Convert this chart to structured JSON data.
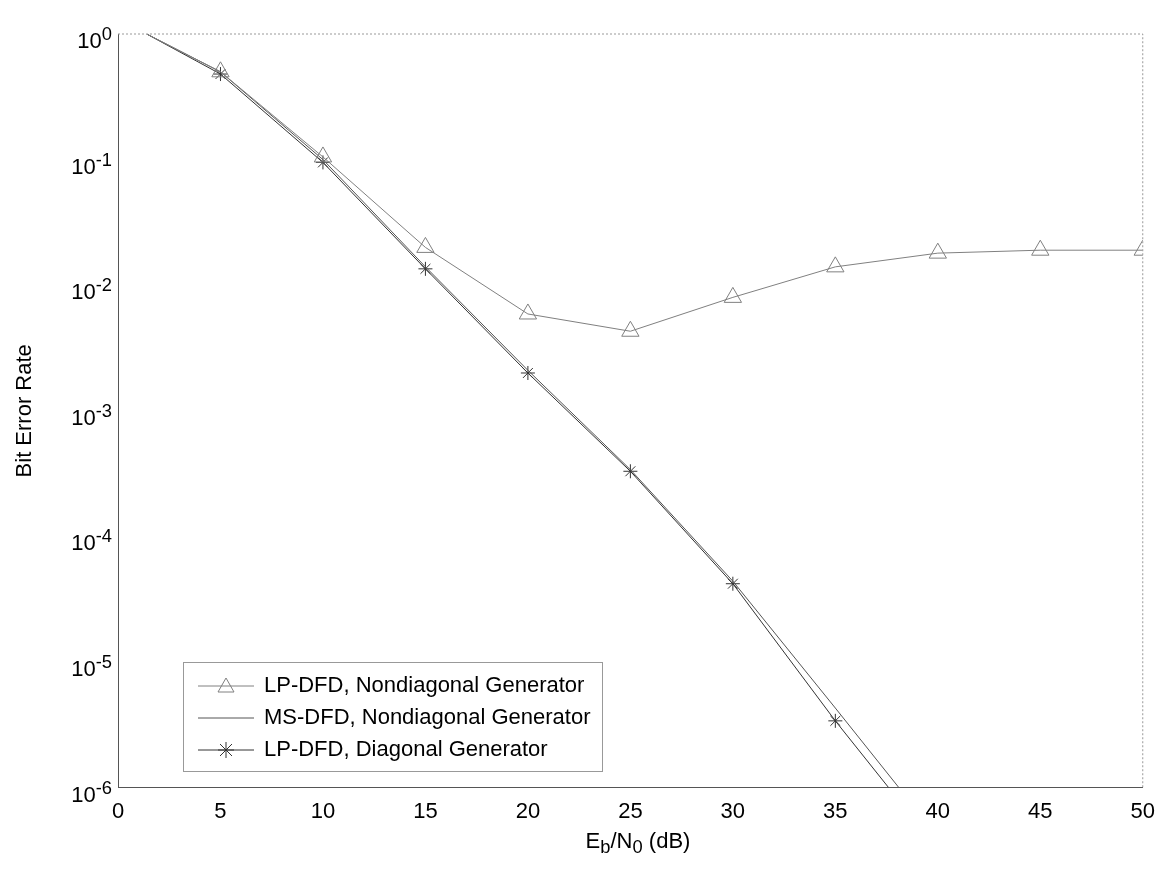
{
  "chart_data": {
    "type": "line",
    "xlabel": "E$_{b}$/N$_{0}$ (dB)",
    "ylabel": "Bit Error Rate",
    "xlim": [
      0,
      50
    ],
    "xticks": [
      0,
      5,
      10,
      15,
      20,
      25,
      30,
      35,
      40,
      45,
      50
    ],
    "ylim": [
      1e-06,
      1
    ],
    "yticks": [
      {
        "value": 1,
        "label": "10$^{0}$"
      },
      {
        "value": 0.1,
        "label": "10$^{-1}$"
      },
      {
        "value": 0.01,
        "label": "10$^{-2}$"
      },
      {
        "value": 0.001,
        "label": "10$^{-3}$"
      },
      {
        "value": 0.0001,
        "label": "10$^{-4}$"
      },
      {
        "value": 1e-05,
        "label": "10$^{-5}$"
      },
      {
        "value": 1e-06,
        "label": "10$^{-6}$"
      }
    ],
    "log": "y",
    "grid": false,
    "legend": "bottom left",
    "series": [
      {
        "name": "LP-DFD, Nondiagonal Generator",
        "color": "#808080",
        "marker": "triangle",
        "x": [
          1.4,
          5,
          10,
          15,
          20,
          25,
          30,
          35,
          40,
          45,
          50
        ],
        "values": [
          1,
          0.5,
          0.105,
          0.02,
          0.0059,
          0.0043,
          0.008,
          0.014,
          0.018,
          0.019,
          0.019
        ]
      },
      {
        "name": "MS-DFD, Nondiagonal Generator",
        "color": "#555555",
        "marker": "none",
        "x": [
          1.4,
          5,
          10,
          15,
          20,
          25,
          30,
          35,
          38.1
        ],
        "values": [
          1,
          0.5,
          0.1,
          0.014,
          0.0021,
          0.00034,
          4.4e-05,
          4.3e-06,
          1e-06
        ]
      },
      {
        "name": "LP-DFD, Diagonal Generator",
        "color": "#333333",
        "marker": "cross",
        "x": [
          1.4,
          5,
          10,
          15,
          20,
          25,
          30,
          35,
          37.6
        ],
        "values": [
          1,
          0.48,
          0.095,
          0.0135,
          0.002,
          0.00033,
          4.2e-05,
          3.4e-06,
          1e-06
        ]
      }
    ]
  }
}
